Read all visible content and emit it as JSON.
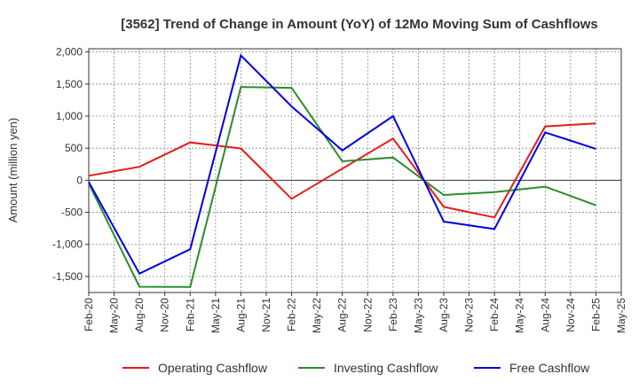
{
  "chart_data": {
    "type": "line",
    "title": "[3562]  Trend of Change in Amount (YoY) of 12Mo Moving Sum of Cashflows",
    "xlabel": "",
    "ylabel": "Amount (million yen)",
    "ylim": [
      -1750,
      2050
    ],
    "yticks": [
      2000,
      1500,
      1000,
      500,
      0,
      -500,
      -1000,
      -1500
    ],
    "ytick_labels": [
      "2,000",
      "1,500",
      "1,000",
      "500",
      "0",
      "-500",
      "-1,000",
      "-1,500"
    ],
    "categories": [
      "Feb-20",
      "May-20",
      "Aug-20",
      "Nov-20",
      "Feb-21",
      "May-21",
      "Aug-21",
      "Nov-21",
      "Feb-22",
      "May-22",
      "Aug-22",
      "Nov-22",
      "Feb-23",
      "May-23",
      "Aug-23",
      "Nov-23",
      "Feb-24",
      "May-24",
      "Aug-24",
      "Nov-24",
      "Feb-25",
      "May-25"
    ],
    "series": [
      {
        "name": "Operating Cashflow",
        "color": "#e41a1c",
        "values": [
          {
            "x": 0,
            "y": 70
          },
          {
            "x": 2,
            "y": 210
          },
          {
            "x": 4,
            "y": 590
          },
          {
            "x": 6,
            "y": 495
          },
          {
            "x": 8,
            "y": -290
          },
          {
            "x": 10,
            "y": 180
          },
          {
            "x": 12,
            "y": 650
          },
          {
            "x": 14,
            "y": -415
          },
          {
            "x": 16,
            "y": -580
          },
          {
            "x": 18,
            "y": 840
          },
          {
            "x": 20,
            "y": 885
          }
        ]
      },
      {
        "name": "Investing Cashflow",
        "color": "#2e8b2e",
        "values": [
          {
            "x": 0,
            "y": -50
          },
          {
            "x": 2,
            "y": -1660
          },
          {
            "x": 4,
            "y": -1665
          },
          {
            "x": 6,
            "y": 1455
          },
          {
            "x": 8,
            "y": 1440
          },
          {
            "x": 10,
            "y": 295
          },
          {
            "x": 12,
            "y": 355
          },
          {
            "x": 14,
            "y": -230
          },
          {
            "x": 16,
            "y": -185
          },
          {
            "x": 18,
            "y": -100
          },
          {
            "x": 20,
            "y": -390
          }
        ]
      },
      {
        "name": "Free Cashflow",
        "color": "#0000dd",
        "values": [
          {
            "x": 0,
            "y": -25
          },
          {
            "x": 2,
            "y": -1455
          },
          {
            "x": 4,
            "y": -1075
          },
          {
            "x": 6,
            "y": 1945
          },
          {
            "x": 8,
            "y": 1150
          },
          {
            "x": 10,
            "y": 465
          },
          {
            "x": 12,
            "y": 1000
          },
          {
            "x": 14,
            "y": -645
          },
          {
            "x": 16,
            "y": -760
          },
          {
            "x": 18,
            "y": 745
          },
          {
            "x": 20,
            "y": 490
          }
        ]
      }
    ],
    "grid": true,
    "legend_position": "bottom"
  }
}
